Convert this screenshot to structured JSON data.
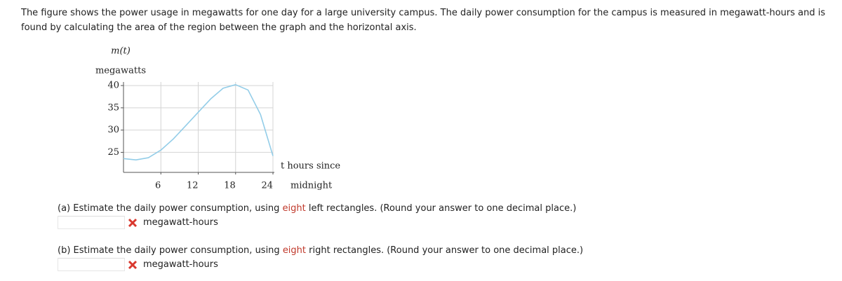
{
  "intro": "The figure shows the power usage in megawatts for one day for a large university campus. The daily power consumption for the campus is measured in megawatt-hours and is found by calculating the area of the region between the graph and the horizontal axis.",
  "chart_data": {
    "type": "line",
    "ylabel_function": "m(t)",
    "ylabel_unit": "megawatts",
    "xlabel_lines": [
      "t hours since",
      "midnight"
    ],
    "x": [
      0,
      2,
      4,
      6,
      8,
      10,
      12,
      14,
      16,
      18,
      20,
      22,
      24
    ],
    "series": [
      {
        "color": "#93cde8",
        "values": [
          23.6,
          23.3,
          23.8,
          25.5,
          28,
          31,
          34,
          37,
          39.4,
          40.2,
          39,
          33.5,
          24.2
        ]
      }
    ],
    "xlim": [
      0,
      24
    ],
    "ylim": [
      20.5,
      40.8
    ],
    "xticks": [
      6,
      12,
      18,
      24
    ],
    "yticks": [
      25,
      30,
      35,
      40
    ],
    "grid": true
  },
  "parts": [
    {
      "prefix": "(a) Estimate the daily power consumption, using ",
      "highlight": "eight",
      "suffix": " left rectangles. (Round your answer to one decimal place.)",
      "unit": "megawatt-hours"
    },
    {
      "prefix": "(b) Estimate the daily power consumption, using ",
      "highlight": "eight",
      "suffix": " right rectangles. (Round your answer to one decimal place.)",
      "unit": "megawatt-hours"
    }
  ]
}
